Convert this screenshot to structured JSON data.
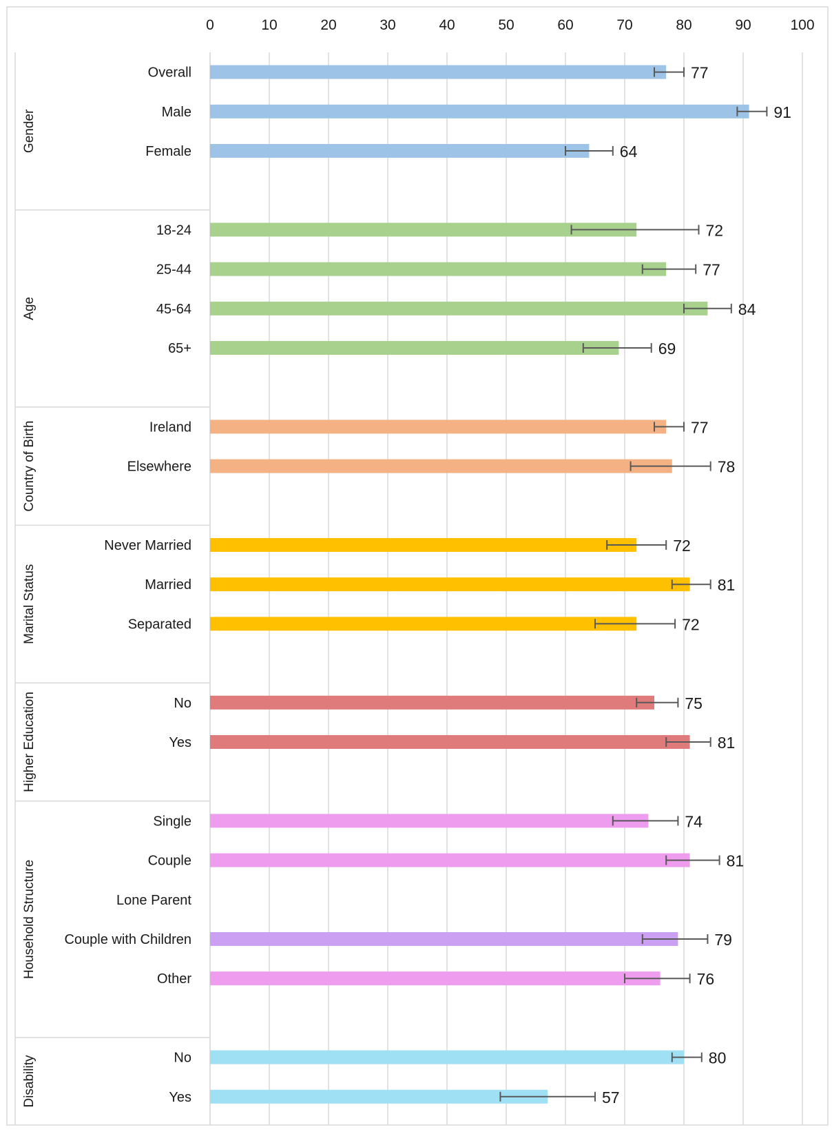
{
  "chart_data": {
    "type": "bar",
    "orientation": "horizontal",
    "xlim": [
      0,
      100
    ],
    "x_ticks": [
      "0",
      "10",
      "20",
      "30",
      "40",
      "50",
      "60",
      "70",
      "80",
      "90",
      "100"
    ],
    "grid": true,
    "error_bars": true,
    "groups": [
      {
        "name": "Gender",
        "color": "#9DC3E6",
        "items": [
          {
            "label": "Overall",
            "value": 77,
            "err_low": 75,
            "err_high": 80,
            "value_label": "77"
          },
          {
            "label": "Male",
            "value": 91,
            "err_low": 89,
            "err_high": 94,
            "value_label": "91"
          },
          {
            "label": "Female",
            "value": 64,
            "err_low": 60,
            "err_high": 68,
            "value_label": "64"
          }
        ]
      },
      {
        "name": "Age",
        "color": "#A9D18E",
        "items": [
          {
            "label": "18-24",
            "value": 72,
            "err_low": 61,
            "err_high": 82.5,
            "value_label": "72"
          },
          {
            "label": "25-44",
            "value": 77,
            "err_low": 73,
            "err_high": 82,
            "value_label": "77"
          },
          {
            "label": "45-64",
            "value": 84,
            "err_low": 80,
            "err_high": 88,
            "value_label": "84"
          },
          {
            "label": "65+",
            "value": 69,
            "err_low": 63,
            "err_high": 74.5,
            "value_label": "69"
          }
        ]
      },
      {
        "name": "Country of Birth",
        "color": "#F4B183",
        "items": [
          {
            "label": "Ireland",
            "value": 77,
            "err_low": 75,
            "err_high": 80,
            "value_label": "77"
          },
          {
            "label": "Elsewhere",
            "value": 78,
            "err_low": 71,
            "err_high": 84.5,
            "value_label": "78"
          }
        ]
      },
      {
        "name": "Marital Status",
        "color": "#FFC000",
        "items": [
          {
            "label": "Never Married",
            "value": 72,
            "err_low": 67,
            "err_high": 77,
            "value_label": "72"
          },
          {
            "label": "Married",
            "value": 81,
            "err_low": 78,
            "err_high": 84.5,
            "value_label": "81"
          },
          {
            "label": "Separated",
            "value": 72,
            "err_low": 65,
            "err_high": 78.5,
            "value_label": "72"
          }
        ]
      },
      {
        "name": "Higher Education",
        "color": "#E07B7B",
        "items": [
          {
            "label": "No",
            "value": 75,
            "err_low": 72,
            "err_high": 79,
            "value_label": "75"
          },
          {
            "label": "Yes",
            "value": 81,
            "err_low": 77,
            "err_high": 84.5,
            "value_label": "81"
          }
        ]
      },
      {
        "name": "Household Structure",
        "color": "#EE9CEE",
        "items": [
          {
            "label": "Single",
            "value": 74,
            "err_low": 68,
            "err_high": 79,
            "value_label": "74"
          },
          {
            "label": "Couple",
            "value": 81,
            "err_low": 77,
            "err_high": 86,
            "value_label": "81"
          },
          {
            "label": "Lone Parent",
            "value": null,
            "err_low": null,
            "err_high": null,
            "value_label": ""
          },
          {
            "label": "Couple with Children",
            "value": 79,
            "err_low": 73,
            "err_high": 84,
            "value_label": "79",
            "color": "#CBA0F2"
          },
          {
            "label": "Other",
            "value": 76,
            "err_low": 70,
            "err_high": 81,
            "value_label": "76"
          }
        ]
      },
      {
        "name": "Disability",
        "color": "#9FE0F5",
        "items": [
          {
            "label": "No",
            "value": 80,
            "err_low": 78,
            "err_high": 83,
            "value_label": "80"
          },
          {
            "label": "Yes",
            "value": 57,
            "err_low": 49,
            "err_high": 65,
            "value_label": "57"
          }
        ]
      }
    ]
  }
}
